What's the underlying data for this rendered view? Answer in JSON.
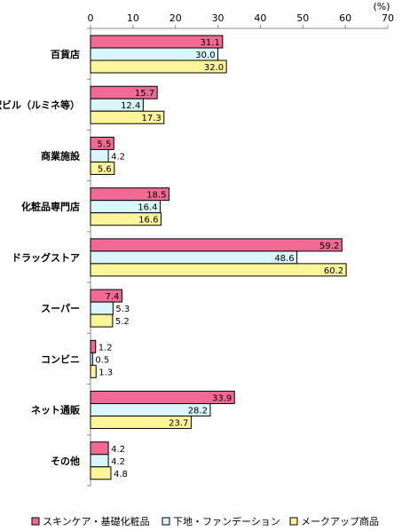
{
  "chart_data": {
    "type": "bar",
    "orientation": "horizontal",
    "unit_label": "(%)",
    "xlim": [
      0,
      70
    ],
    "xticks": [
      0,
      10,
      20,
      30,
      40,
      50,
      60,
      70
    ],
    "grid": false,
    "legend_position": "bottom",
    "categories": [
      "百貨店",
      "駅ビル（ルミネ等）",
      "商業施設",
      "化粧品専門店",
      "ドラッグストア",
      "スーパー",
      "コンビニ",
      "ネット通販",
      "その他"
    ],
    "series": [
      {
        "name": "スキンケア・基礎化粧品",
        "color": "#f06a93",
        "values": [
          31.1,
          15.7,
          5.5,
          18.5,
          59.2,
          7.4,
          1.2,
          33.9,
          4.2
        ],
        "labels": [
          "31.1",
          "15.7",
          "5.5",
          "18.5",
          "59.2",
          "7.4",
          "1.2",
          "33.9",
          "4.2"
        ]
      },
      {
        "name": "下地・ファンデーション",
        "color": "#d8f6fb",
        "values": [
          30.0,
          12.4,
          4.2,
          16.4,
          48.6,
          5.3,
          0.5,
          28.2,
          4.2
        ],
        "labels": [
          "30.0",
          "12.4",
          "4.2",
          "16.4",
          "48.6",
          "5.3",
          "0.5",
          "28.2",
          "4.2"
        ]
      },
      {
        "name": "メークアップ商品",
        "color": "#fdf59a",
        "values": [
          32.0,
          17.3,
          5.6,
          16.6,
          60.2,
          5.2,
          1.3,
          23.7,
          4.8
        ],
        "labels": [
          "32.0",
          "17.3",
          "5.6",
          "16.6",
          "60.2",
          "5.2",
          "1.3",
          "23.7",
          "4.8"
        ]
      }
    ]
  }
}
